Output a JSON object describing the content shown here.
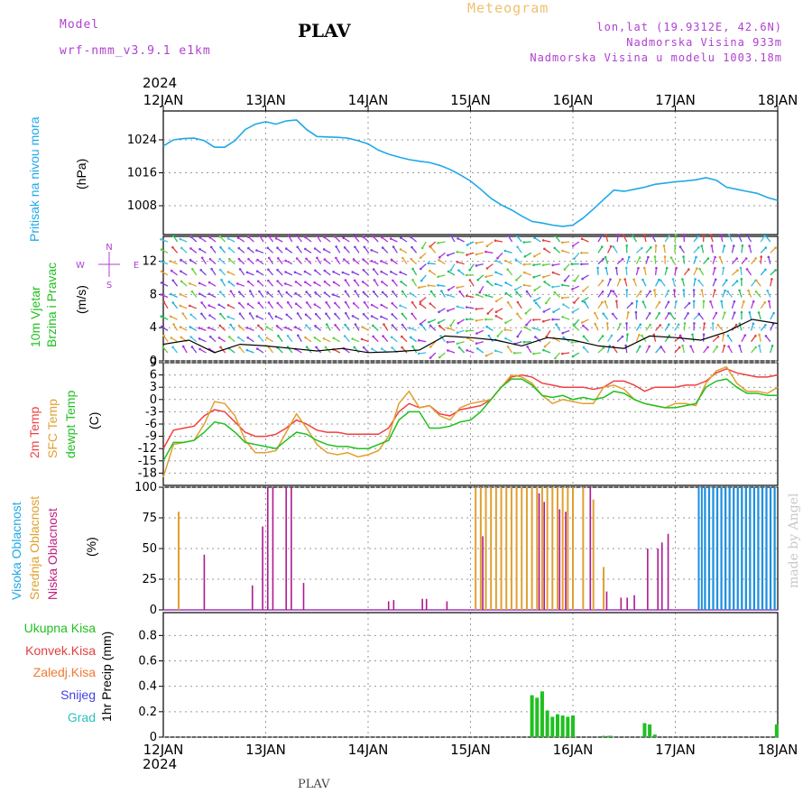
{
  "header": {
    "model_label": "Model",
    "model_name": "wrf-nmm_v3.9.1  e1km",
    "title": "PLAV",
    "meteogram": "Meteogram",
    "lonlat": "lon,lat (19.9312E, 42.6N)",
    "elev": "Nadmorska Visina 933m",
    "elev_model": "Nadmorska Visina u modelu 1003.18m",
    "year_top": "2024",
    "year_bottom": "2024",
    "footer": "PLAV",
    "watermark": "made by Angel"
  },
  "colors": {
    "pressure": "#1ea8e8",
    "temp2m": "#f04040",
    "sfc": "#e0a030",
    "dewpt": "#20c020",
    "high_cloud": "#1e90e0",
    "mid_cloud": "#e0a030",
    "low_cloud": "#b01890",
    "precip_total": "#20c020",
    "precip_conv": "#e04040",
    "precip_frz": "#f07830",
    "snow": "#4040e0",
    "hail": "#30c0c0"
  },
  "chart_data": [
    {
      "type": "line",
      "panel": "pressure",
      "ylabel": "Pritisak na nivou mora",
      "unit": "(hPa)",
      "x_ticks": [
        "12JAN",
        "13JAN",
        "14JAN",
        "15JAN",
        "16JAN",
        "17JAN",
        "18JAN"
      ],
      "yticks": [
        "1008",
        "1016",
        "1024"
      ],
      "ylim": [
        1001,
        1031
      ],
      "x_days": [
        0,
        0.1,
        0.2,
        0.3,
        0.4,
        0.5,
        0.6,
        0.7,
        0.8,
        0.9,
        1.0,
        1.1,
        1.2,
        1.3,
        1.4,
        1.5,
        1.6,
        1.7,
        1.8,
        1.9,
        2.0,
        2.1,
        2.2,
        2.3,
        2.4,
        2.5,
        2.6,
        2.7,
        2.8,
        2.9,
        3.0,
        3.1,
        3.2,
        3.3,
        3.4,
        3.5,
        3.6,
        3.7,
        3.8,
        3.9,
        4.0,
        4.1,
        4.2,
        4.3,
        4.4,
        4.5,
        4.6,
        4.7,
        4.8,
        4.9,
        5.0,
        5.1,
        5.2,
        5.3,
        5.4,
        5.5,
        5.6,
        5.7,
        5.8,
        5.9,
        6.0
      ],
      "values": [
        1022.5,
        1024,
        1024.3,
        1024.4,
        1023.8,
        1022.2,
        1022.2,
        1023.8,
        1026.5,
        1027.8,
        1028.4,
        1027.8,
        1028.6,
        1028.8,
        1026.5,
        1024.8,
        1024.7,
        1024.6,
        1024.4,
        1023.8,
        1023,
        1021.5,
        1020.5,
        1019.8,
        1019.2,
        1018.8,
        1018.5,
        1017.8,
        1016.8,
        1015.5,
        1014,
        1012,
        1009.8,
        1008.2,
        1007,
        1005.5,
        1004.2,
        1003.8,
        1003.3,
        1003.0,
        1003.3,
        1005,
        1007.2,
        1009.5,
        1011.8,
        1011.5,
        1012,
        1012.5,
        1013.2,
        1013.5,
        1013.8,
        1014,
        1014.3,
        1014.8,
        1014.2,
        1012.5,
        1012,
        1011.5,
        1011,
        1010,
        1009.3
      ]
    },
    {
      "type": "line",
      "panel": "wind",
      "ylabel": "10m Vjetar Brzina i Pravac",
      "unit": "(m/s)",
      "yticks": [
        "0",
        "4",
        "8",
        "12"
      ],
      "ylim": [
        0,
        15
      ],
      "x_days": [
        0,
        0.25,
        0.5,
        0.75,
        1.0,
        1.25,
        1.5,
        1.75,
        2.0,
        2.25,
        2.5,
        2.75,
        3.0,
        3.25,
        3.5,
        3.75,
        4.0,
        4.25,
        4.5,
        4.75,
        5.0,
        5.25,
        5.5,
        5.75,
        6.0
      ],
      "values": [
        2,
        2.5,
        1,
        2,
        1.8,
        1.5,
        1.2,
        1.5,
        1,
        1.1,
        1.3,
        3,
        2.8,
        2.5,
        1.8,
        2.8,
        2.5,
        1.8,
        1.5,
        3,
        2.8,
        2.5,
        3.5,
        5,
        4.5
      ],
      "compass": [
        "N",
        "E",
        "W",
        "S"
      ]
    },
    {
      "type": "line",
      "panel": "temperature",
      "series_names": [
        "2m Temp",
        "SFC Temp",
        "dewpt Temp"
      ],
      "unit": "(C)",
      "yticks": [
        "-18",
        "-15",
        "-12",
        "-9",
        "-6",
        "-3",
        "0",
        "3",
        "6",
        "9"
      ],
      "ylim": [
        -21,
        9
      ],
      "x_days": [
        0,
        0.1,
        0.2,
        0.3,
        0.4,
        0.5,
        0.6,
        0.7,
        0.8,
        0.9,
        1.0,
        1.1,
        1.2,
        1.3,
        1.4,
        1.5,
        1.6,
        1.7,
        1.8,
        1.9,
        2.0,
        2.1,
        2.2,
        2.3,
        2.4,
        2.5,
        2.6,
        2.7,
        2.8,
        2.9,
        3.0,
        3.1,
        3.2,
        3.3,
        3.4,
        3.5,
        3.6,
        3.7,
        3.8,
        3.9,
        4.0,
        4.1,
        4.2,
        4.3,
        4.4,
        4.5,
        4.6,
        4.7,
        4.8,
        4.9,
        5.0,
        5.1,
        5.2,
        5.3,
        5.4,
        5.5,
        5.6,
        5.7,
        5.8,
        5.9,
        6.0
      ],
      "series": [
        {
          "name": "2m Temp",
          "values": [
            -12,
            -7.5,
            -7,
            -6.5,
            -4,
            -2.5,
            -3,
            -5.5,
            -8,
            -9,
            -9,
            -8.5,
            -7,
            -5,
            -6,
            -7.5,
            -8,
            -8,
            -8.5,
            -8.5,
            -8.5,
            -8.5,
            -7,
            -3,
            -1,
            -2,
            -1.5,
            -3.5,
            -4,
            -2.5,
            -2,
            -1.5,
            0,
            3,
            5.5,
            6,
            5.5,
            4,
            3.5,
            3,
            3,
            3,
            2.5,
            3,
            4.5,
            4.5,
            3.5,
            2,
            3,
            3,
            3,
            3.5,
            3.5,
            4.5,
            6.5,
            7.5,
            6.5,
            6,
            5.5,
            5.5,
            6
          ]
        },
        {
          "name": "SFC Temp",
          "values": [
            -19,
            -11,
            -10.5,
            -10,
            -6,
            -0.5,
            -1,
            -4,
            -10,
            -13,
            -13,
            -12.5,
            -8,
            -3.5,
            -7,
            -11,
            -13,
            -13.5,
            -13,
            -14,
            -13.5,
            -12.5,
            -9,
            -1,
            2,
            -2,
            -1.5,
            -4,
            -5,
            -2,
            -1,
            -0.5,
            0,
            3,
            6,
            5.5,
            4,
            1,
            -1,
            0,
            -0.5,
            -1,
            -1,
            3,
            3.5,
            2.5,
            0,
            -1,
            -1.5,
            -2,
            -1,
            -1,
            -1.5,
            4,
            7,
            8,
            4,
            2,
            2,
            1.5,
            3
          ]
        },
        {
          "name": "dewpt Temp",
          "values": [
            -15,
            -10.5,
            -10.5,
            -10,
            -8,
            -5.5,
            -6,
            -8,
            -10.5,
            -11,
            -11.5,
            -12,
            -10,
            -8,
            -8.5,
            -10,
            -11,
            -11.5,
            -11.5,
            -12,
            -12,
            -11,
            -10,
            -5,
            -3,
            -3,
            -7,
            -7,
            -6.5,
            -5.5,
            -5,
            -3,
            0,
            3,
            5,
            5,
            3.5,
            1,
            0.5,
            1,
            0,
            0.5,
            0,
            0.5,
            2,
            1.5,
            0,
            -1,
            -1.5,
            -2,
            -2,
            -1.5,
            -1,
            3,
            4.5,
            5,
            3,
            1.5,
            1.5,
            1,
            1
          ]
        }
      ]
    },
    {
      "type": "bar",
      "panel": "clouds",
      "series_names": [
        "Visoka Oblacnost",
        "Srednja Oblacnost",
        "Niska Oblacnost"
      ],
      "unit": "(%)",
      "yticks": [
        "0",
        "25",
        "50",
        "75",
        "100"
      ],
      "ylim": [
        0,
        100
      ],
      "series": [
        {
          "name": "Visoka Oblacnost",
          "spans": [
            [
              5.22,
              5.23
            ],
            [
              5.25,
              5.26
            ],
            [
              5.28,
              5.3
            ],
            [
              5.32,
              5.34
            ],
            [
              5.36,
              5.38
            ],
            [
              5.4,
              5.42
            ],
            [
              5.44,
              5.46
            ],
            [
              5.48,
              5.5
            ],
            [
              5.52,
              5.54
            ],
            [
              5.56,
              5.58
            ],
            [
              5.6,
              5.62
            ],
            [
              5.64,
              5.66
            ],
            [
              5.68,
              5.7
            ],
            [
              5.72,
              5.74
            ],
            [
              5.76,
              5.78
            ],
            [
              5.8,
              5.82
            ],
            [
              5.84,
              5.86
            ],
            [
              5.88,
              5.9
            ],
            [
              5.92,
              5.94
            ],
            [
              5.96,
              5.98
            ]
          ],
          "value": 100
        },
        {
          "name": "Srednja Oblacnost",
          "x": [
            0.15,
            3.05,
            3.1,
            3.15,
            3.2,
            3.25,
            3.3,
            3.35,
            3.4,
            3.45,
            3.5,
            3.55,
            3.6,
            3.65,
            3.7,
            3.75,
            3.8,
            3.85,
            3.9,
            3.95,
            4.0,
            4.1,
            4.2,
            4.3,
            5.0
          ],
          "values": [
            80,
            100,
            100,
            100,
            100,
            100,
            100,
            100,
            100,
            100,
            100,
            100,
            100,
            100,
            100,
            100,
            100,
            100,
            100,
            100,
            100,
            100,
            90,
            35,
            0
          ]
        },
        {
          "name": "Niska Oblacnost",
          "x": [
            0.4,
            0.87,
            0.97,
            1.02,
            1.07,
            1.2,
            1.25,
            1.37,
            2.2,
            2.25,
            2.53,
            2.57,
            2.77,
            3.12,
            3.67,
            3.72,
            3.87,
            3.93,
            4.17,
            4.33,
            4.47,
            4.53,
            4.6,
            4.73,
            4.83,
            4.87,
            4.93
          ],
          "values": [
            45,
            20,
            68,
            100,
            100,
            100,
            100,
            22,
            7,
            8,
            9,
            9,
            7,
            60,
            95,
            88,
            82,
            80,
            100,
            15,
            10,
            10,
            12,
            50,
            50,
            55,
            62
          ]
        }
      ]
    },
    {
      "type": "bar",
      "panel": "precip",
      "series_names": [
        "Ukupna Kisa",
        "Konvek.Kisa",
        "Zaledj.Kisa",
        "Snijeg",
        "Grad"
      ],
      "ylabel": "1hr Precip (mm)",
      "yticks": [
        "0",
        "0.2",
        "0.4",
        "0.6",
        "0.8"
      ],
      "ylim": [
        0,
        0.98
      ],
      "series": [
        {
          "name": "Ukupna Kisa",
          "x": [
            3.6,
            3.65,
            3.7,
            3.75,
            3.8,
            3.85,
            3.9,
            3.95,
            4.0,
            4.3,
            4.35,
            4.37,
            4.7,
            4.75,
            4.8,
            5.99
          ],
          "values": [
            0.33,
            0.31,
            0.36,
            0.21,
            0.16,
            0.18,
            0.17,
            0.16,
            0.17,
            0.01,
            0.01,
            0.01,
            0.11,
            0.1,
            0.02,
            0.1
          ]
        }
      ]
    }
  ]
}
